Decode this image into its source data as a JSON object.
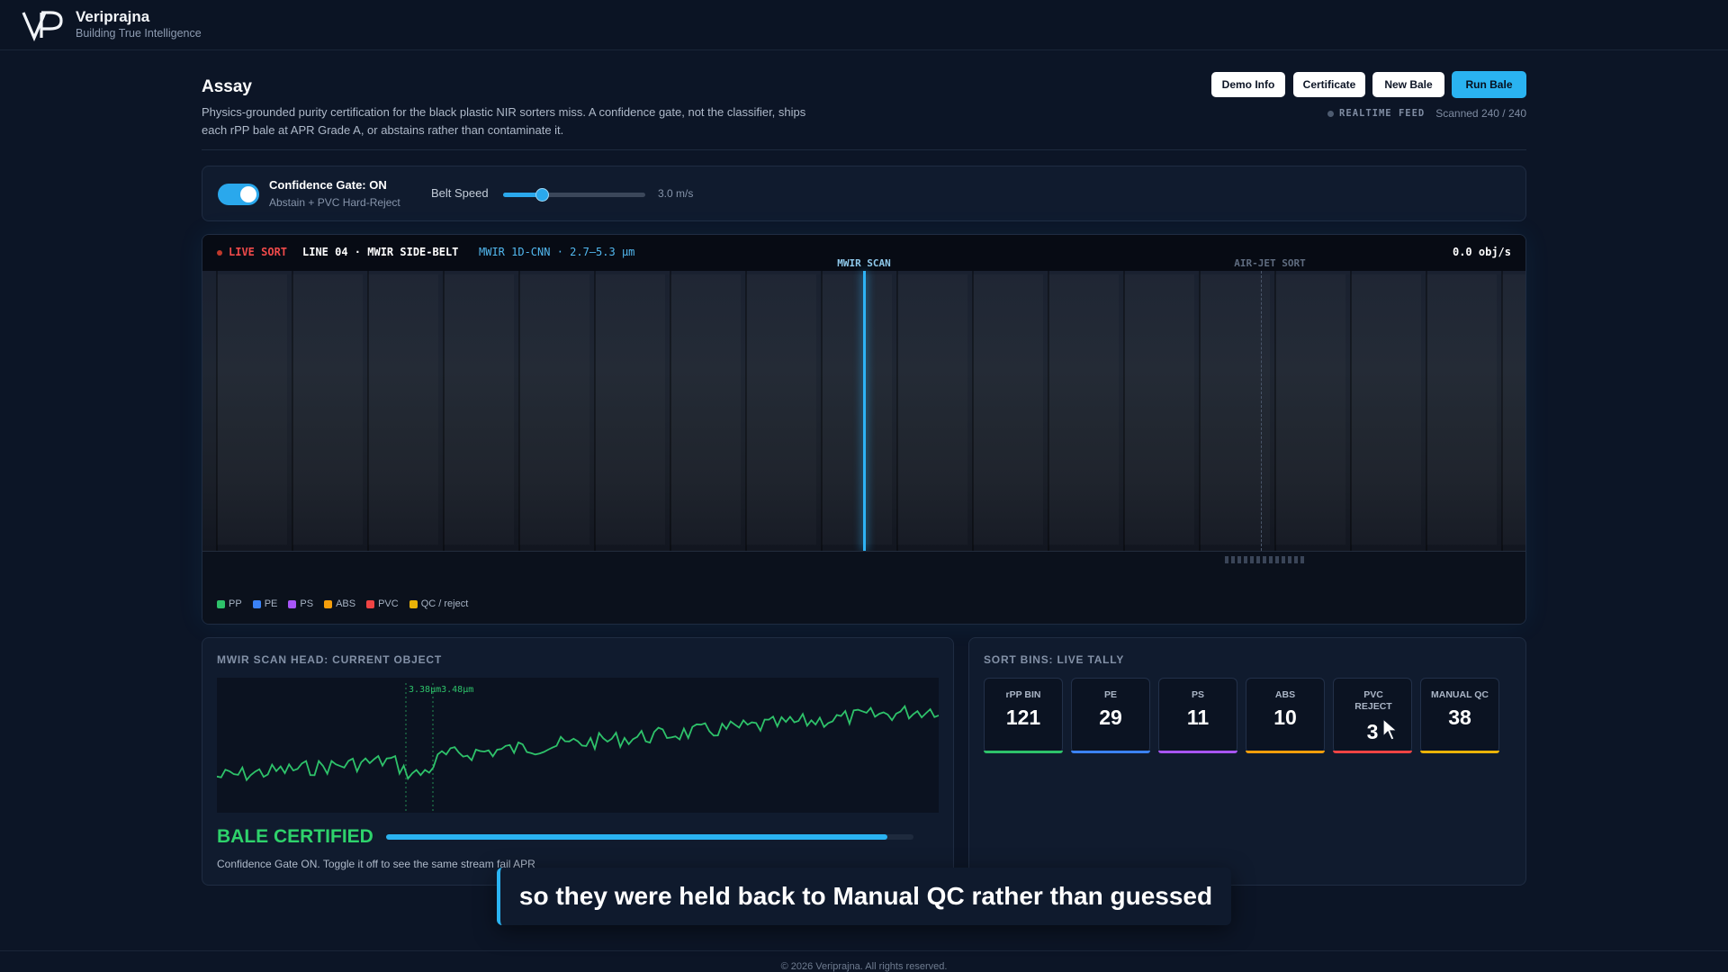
{
  "brand": {
    "logo": "VP",
    "name": "Veriprajna",
    "tagline": "Building True Intelligence"
  },
  "assay": {
    "title": "Assay",
    "description": "Physics-grounded purity certification for the black plastic NIR sorters miss. A confidence gate, not the classifier, ships each rPP bale at APR Grade A, or abstains rather than contaminate it."
  },
  "actions": {
    "demo_info": "Demo Info",
    "certificate": "Certificate",
    "new_bale": "New Bale",
    "run_bale": "Run Bale"
  },
  "feed": {
    "label": "REALTIME FEED",
    "scanned": "Scanned 240 / 240"
  },
  "controls": {
    "gate_label": "Confidence Gate: ON",
    "gate_sub": "Abstain + PVC Hard-Reject",
    "gate_on": true,
    "speed_label": "Belt Speed",
    "speed_value": "3.0 m/s",
    "speed_fraction": 0.27
  },
  "belt": {
    "live": "LIVE SORT",
    "line": "LINE 04 · MWIR SIDE-BELT",
    "model": "MWIR 1D-CNN · 2.7–5.3 µm",
    "rate": "0.0 obj/s",
    "scan_label": "MWIR SCAN",
    "jet_label": "AIR-JET SORT"
  },
  "legend": [
    {
      "label": "PP",
      "color": "#2ec26a"
    },
    {
      "label": "PE",
      "color": "#3b82f6"
    },
    {
      "label": "PS",
      "color": "#a855f7"
    },
    {
      "label": "ABS",
      "color": "#f59e0b"
    },
    {
      "label": "PVC",
      "color": "#ef4444"
    },
    {
      "label": "QC / reject",
      "color": "#eab308"
    }
  ],
  "scan_head": {
    "title": "MWIR SCAN HEAD: CURRENT OBJECT",
    "marker_label": "3.38µm3.48µm"
  },
  "status": {
    "label": "BALE CERTIFIED",
    "progress": 0.95,
    "note": "Confidence Gate ON. Toggle it off to see the same stream fail APR"
  },
  "bins": {
    "title": "SORT BINS: LIVE TALLY",
    "items": [
      {
        "label": "rPP BIN",
        "value": "121",
        "color": "#2ec26a"
      },
      {
        "label": "PE",
        "value": "29",
        "color": "#3b82f6"
      },
      {
        "label": "PS",
        "value": "11",
        "color": "#a855f7"
      },
      {
        "label": "ABS",
        "value": "10",
        "color": "#f59e0b"
      },
      {
        "label": "PVC REJECT",
        "value": "3",
        "color": "#ef4444"
      },
      {
        "label": "MANUAL QC",
        "value": "38",
        "color": "#eab308"
      }
    ]
  },
  "caption": "so they were held back to Manual QC rather than guessed",
  "footer": "© 2026 Veriprajna. All rights reserved."
}
